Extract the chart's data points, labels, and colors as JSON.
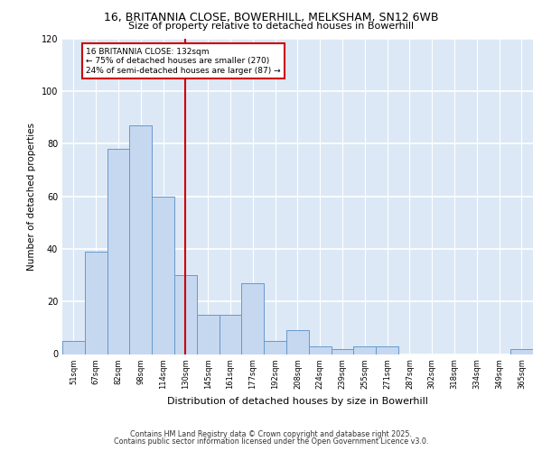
{
  "title1": "16, BRITANNIA CLOSE, BOWERHILL, MELKSHAM, SN12 6WB",
  "title2": "Size of property relative to detached houses in Bowerhill",
  "xlabel": "Distribution of detached houses by size in Bowerhill",
  "ylabel": "Number of detached properties",
  "categories": [
    "51sqm",
    "67sqm",
    "82sqm",
    "98sqm",
    "114sqm",
    "130sqm",
    "145sqm",
    "161sqm",
    "177sqm",
    "192sqm",
    "208sqm",
    "224sqm",
    "239sqm",
    "255sqm",
    "271sqm",
    "287sqm",
    "302sqm",
    "318sqm",
    "334sqm",
    "349sqm",
    "365sqm"
  ],
  "values": [
    5,
    39,
    78,
    87,
    60,
    30,
    15,
    15,
    27,
    5,
    9,
    3,
    2,
    3,
    3,
    0,
    0,
    0,
    0,
    0,
    2
  ],
  "bar_color": "#c5d8f0",
  "bar_edge_color": "#6699cc",
  "marker_line_color": "#cc0000",
  "marker_label": "16 BRITANNIA CLOSE: 132sqm",
  "annotation_line1": "← 75% of detached houses are smaller (270)",
  "annotation_line2": "24% of semi-detached houses are larger (87) →",
  "annotation_box_edge_color": "#cc0000",
  "ylim": [
    0,
    120
  ],
  "yticks": [
    0,
    20,
    40,
    60,
    80,
    100,
    120
  ],
  "plot_bg_color": "#dce8f5",
  "footer1": "Contains HM Land Registry data © Crown copyright and database right 2025.",
  "footer2": "Contains public sector information licensed under the Open Government Licence v3.0."
}
